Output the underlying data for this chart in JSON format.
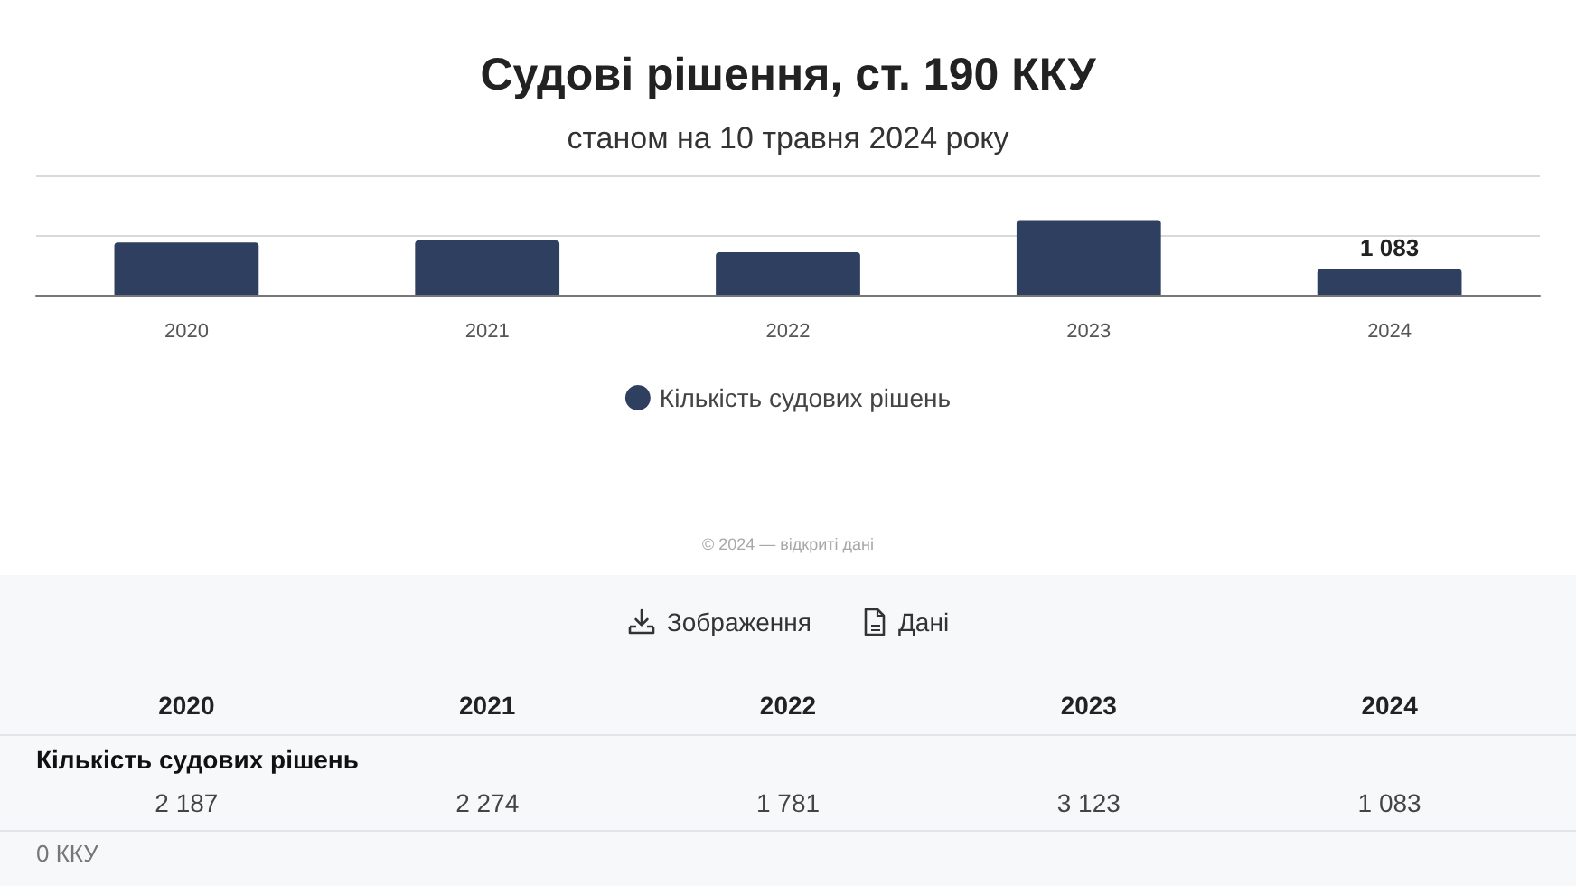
{
  "chart_data": {
    "type": "bar",
    "title": "Судові рішення, ст. 190 ККУ",
    "subtitle": "станом на 10 травня 2024 року",
    "categories": [
      "2020",
      "2021",
      "2022",
      "2023",
      "2024"
    ],
    "series": [
      {
        "name": "Кількість судових рішень",
        "color": "#2f3f5f",
        "values": [
          2187,
          2274,
          1781,
          3123,
          1083
        ],
        "value_labels": [
          "2 187",
          "2 274",
          "1 781",
          "3 123",
          "1 083"
        ]
      }
    ],
    "ylim": [
      0,
      5000
    ],
    "yticks": [
      {
        "value": 0,
        "label": null
      },
      {
        "value": 2500,
        "label": null
      },
      {
        "value": 5000,
        "label": null
      }
    ],
    "grid": "y",
    "tick_labels": "x",
    "legend": "bottom",
    "annotations": [
      {
        "text": "1 083",
        "x": "2024",
        "y": 1083
      },
      "© 2024 — відкриті дані",
      "Зображення",
      "Дані",
      "0 ККУ"
    ]
  }
}
